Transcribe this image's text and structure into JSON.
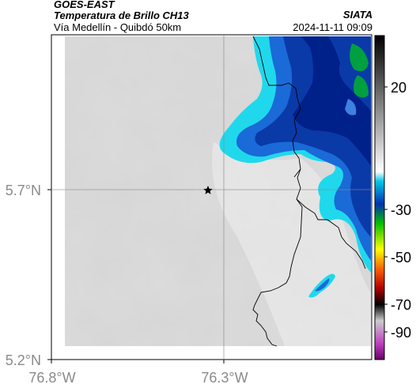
{
  "header": {
    "satellite": "GOES-EAST",
    "product": "Temperatura de Brillo CH13",
    "region": "Vía Medellín - Quibdó 50km",
    "org": "SIATA",
    "datetime": "2024-11-11 09:09"
  },
  "axes": {
    "y_ticks": [
      "5.7°N",
      "5.2°N"
    ],
    "x_ticks": [
      "76.8°W",
      "76.3°W"
    ]
  },
  "colorbar": {
    "ticks": [
      "20",
      "-30",
      "-50",
      "-70",
      "-90"
    ],
    "colors": [
      "#000000",
      "#ffffff",
      "#00e0f0",
      "#0030c0",
      "#00c000",
      "#ffff00",
      "#ff0000",
      "#ff00ff"
    ]
  },
  "marker": {
    "icon": "star-icon"
  }
}
